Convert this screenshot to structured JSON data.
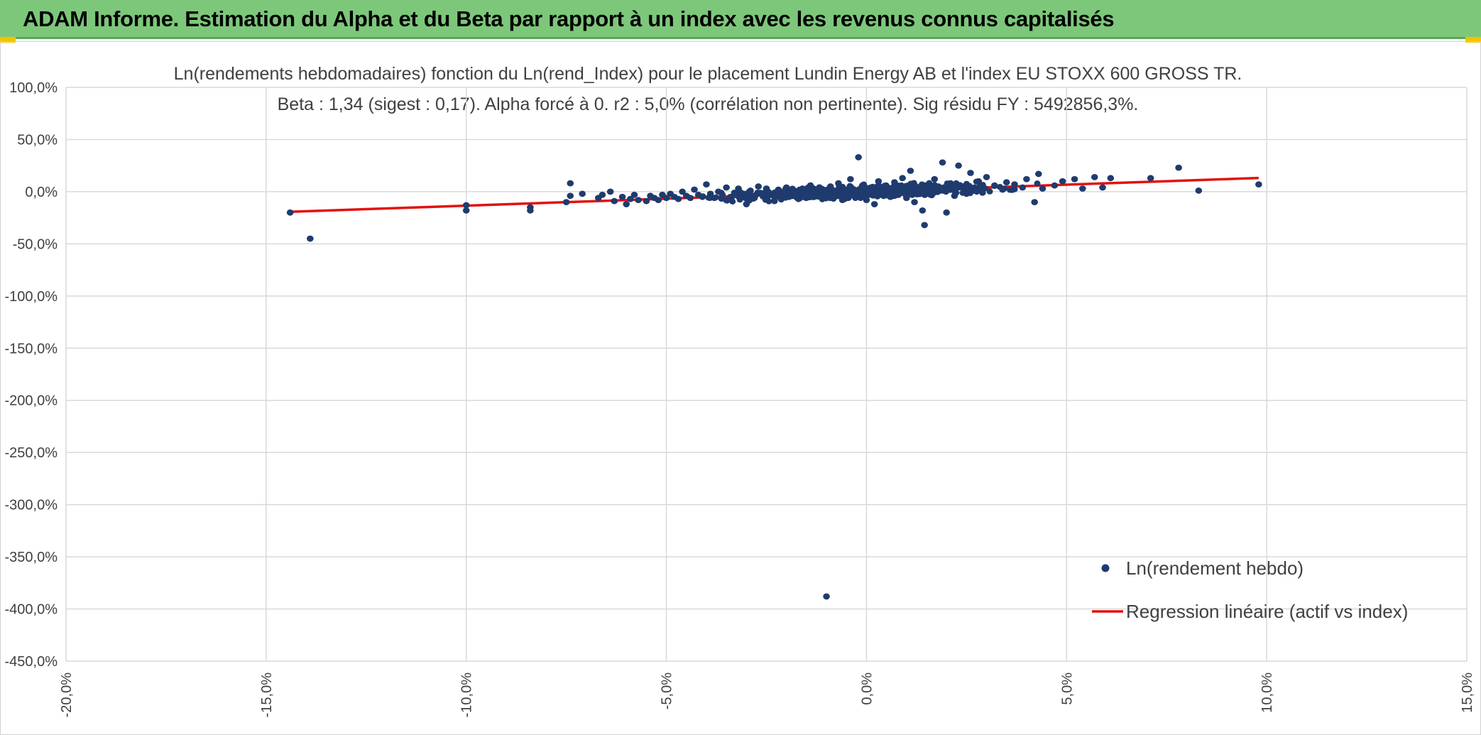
{
  "header": {
    "title": "ADAM Informe. Estimation du Alpha et du Beta par rapport à un index avec les revenus connus capitalisés"
  },
  "colors": {
    "header_bg": "#7dc77b",
    "corner_accent": "#f2c200",
    "point": "#1f3b6e",
    "regression": "#e31010",
    "grid": "#d9d9d9",
    "axis_text": "#404040"
  },
  "chart_data": {
    "type": "scatter",
    "title": "Ln(rendements hebdomadaires) fonction du Ln(rend_Index) pour le placement Lundin Energy AB et l'index EU STOXX 600 GROSS TR.",
    "subtitle": "Beta : 1,34 (sigest : 0,17). Alpha forcé à 0. r2 : 5,0% (corrélation non pertinente). Sig résidu FY : 5492856,3%.",
    "xlim": [
      -20,
      15
    ],
    "ylim": [
      -450,
      100
    ],
    "x_ticks": [
      "-20,0%",
      "-15,0%",
      "-10,0%",
      "-5,0%",
      "0,0%",
      "5,0%",
      "10,0%",
      "15,0%"
    ],
    "y_ticks": [
      "100,0%",
      "50,0%",
      "0,0%",
      "-50,0%",
      "-100,0%",
      "-150,0%",
      "-200,0%",
      "-250,0%",
      "-300,0%",
      "-350,0%",
      "-400,0%",
      "-450,0%"
    ],
    "grid": true,
    "legend_position": "bottom-right",
    "legend": [
      {
        "label": "Ln(rendement hebdo)",
        "marker": "dot"
      },
      {
        "label": "Regression linéaire (actif vs index)",
        "marker": "line"
      }
    ],
    "series": [
      {
        "name": "Ln(rendement hebdo)",
        "kind": "points",
        "points": [
          [
            -14.4,
            -20
          ],
          [
            -13.9,
            -45
          ],
          [
            -10.0,
            -13
          ],
          [
            -10.0,
            -18
          ],
          [
            -8.4,
            -15
          ],
          [
            -8.4,
            -18
          ],
          [
            -7.5,
            -10
          ],
          [
            -7.4,
            8
          ],
          [
            -7.4,
            -4
          ],
          [
            -7.1,
            -2
          ],
          [
            -6.7,
            -6
          ],
          [
            -6.6,
            -3
          ],
          [
            -6.4,
            0
          ],
          [
            -6.3,
            -9
          ],
          [
            -6.1,
            -5
          ],
          [
            -6.0,
            -12
          ],
          [
            -5.9,
            -7
          ],
          [
            -5.8,
            -3
          ],
          [
            -5.7,
            -8
          ],
          [
            -5.5,
            -9
          ],
          [
            -5.4,
            -4
          ],
          [
            -5.3,
            -6
          ],
          [
            -5.2,
            -8
          ],
          [
            -5.1,
            -3
          ],
          [
            -5.0,
            -6
          ],
          [
            -4.9,
            -2
          ],
          [
            -4.8,
            -5
          ],
          [
            -4.7,
            -7
          ],
          [
            -4.6,
            0
          ],
          [
            -4.5,
            -4
          ],
          [
            -4.4,
            -6
          ],
          [
            -4.3,
            2
          ],
          [
            -4.2,
            -3
          ],
          [
            -4.1,
            -5
          ],
          [
            -4.0,
            7
          ],
          [
            -3.9,
            -2
          ],
          [
            -3.8,
            -6
          ],
          [
            -3.7,
            0
          ],
          [
            -3.6,
            -3
          ],
          [
            -3.5,
            4
          ],
          [
            -3.4,
            -5
          ],
          [
            -3.3,
            -1
          ],
          [
            -3.2,
            3
          ],
          [
            -3.1,
            -4
          ],
          [
            -3.0,
            -12
          ],
          [
            -2.9,
            1
          ],
          [
            -2.8,
            -6
          ],
          [
            -2.7,
            5
          ],
          [
            -2.6,
            -2
          ],
          [
            -2.5,
            3
          ],
          [
            -2.4,
            -3
          ],
          [
            -2.3,
            -9
          ],
          [
            -2.2,
            2
          ],
          [
            -2.1,
            -5
          ],
          [
            -2.0,
            4
          ],
          [
            -1.9,
            -3
          ],
          [
            -1.8,
            1
          ],
          [
            -1.7,
            -7
          ],
          [
            -1.6,
            3
          ],
          [
            -1.5,
            -2
          ],
          [
            -1.4,
            6
          ],
          [
            -1.3,
            -4
          ],
          [
            -1.2,
            2
          ],
          [
            -1.1,
            -6
          ],
          [
            -1.0,
            -388
          ],
          [
            -0.9,
            5
          ],
          [
            -0.8,
            -3
          ],
          [
            -0.7,
            8
          ],
          [
            -0.6,
            -8
          ],
          [
            -0.5,
            2
          ],
          [
            -0.4,
            12
          ],
          [
            -0.3,
            -4
          ],
          [
            -0.2,
            33
          ],
          [
            -0.1,
            6
          ],
          [
            0.0,
            -8
          ],
          [
            0.1,
            3
          ],
          [
            0.2,
            -12
          ],
          [
            0.3,
            10
          ],
          [
            0.4,
            -2
          ],
          [
            0.5,
            5
          ],
          [
            0.6,
            -5
          ],
          [
            0.7,
            9
          ],
          [
            0.8,
            -3
          ],
          [
            0.9,
            13
          ],
          [
            1.0,
            -6
          ],
          [
            1.1,
            20
          ],
          [
            1.2,
            -10
          ],
          [
            1.3,
            4
          ],
          [
            1.4,
            -18
          ],
          [
            1.5,
            6
          ],
          [
            1.45,
            -32
          ],
          [
            1.6,
            -3
          ],
          [
            1.7,
            12
          ],
          [
            1.8,
            1
          ],
          [
            1.9,
            28
          ],
          [
            2.0,
            -20
          ],
          [
            2.1,
            8
          ],
          [
            2.2,
            -4
          ],
          [
            2.3,
            25
          ],
          [
            2.4,
            5
          ],
          [
            2.5,
            -2
          ],
          [
            2.6,
            18
          ],
          [
            2.7,
            4
          ],
          [
            2.8,
            10
          ],
          [
            2.9,
            -1
          ],
          [
            3.0,
            14
          ],
          [
            3.2,
            6
          ],
          [
            3.4,
            2
          ],
          [
            3.5,
            9
          ],
          [
            3.7,
            7
          ],
          [
            3.9,
            4
          ],
          [
            4.0,
            12
          ],
          [
            4.2,
            -10
          ],
          [
            4.3,
            17
          ],
          [
            4.4,
            3
          ],
          [
            4.7,
            6
          ],
          [
            4.9,
            10
          ],
          [
            5.2,
            12
          ],
          [
            5.4,
            3
          ],
          [
            5.7,
            14
          ],
          [
            5.9,
            4
          ],
          [
            6.1,
            13
          ],
          [
            7.1,
            13
          ],
          [
            7.8,
            23
          ],
          [
            8.3,
            1
          ],
          [
            9.8,
            7
          ]
        ],
        "dense_cluster": {
          "x_range": [
            -4.5,
            4.5
          ],
          "y_range": [
            -8,
            8
          ],
          "note": "dense band of points around origin"
        }
      },
      {
        "name": "Regression linéaire (actif vs index)",
        "kind": "line",
        "slope": 1.34,
        "x_range": [
          -14.4,
          9.8
        ]
      }
    ]
  }
}
